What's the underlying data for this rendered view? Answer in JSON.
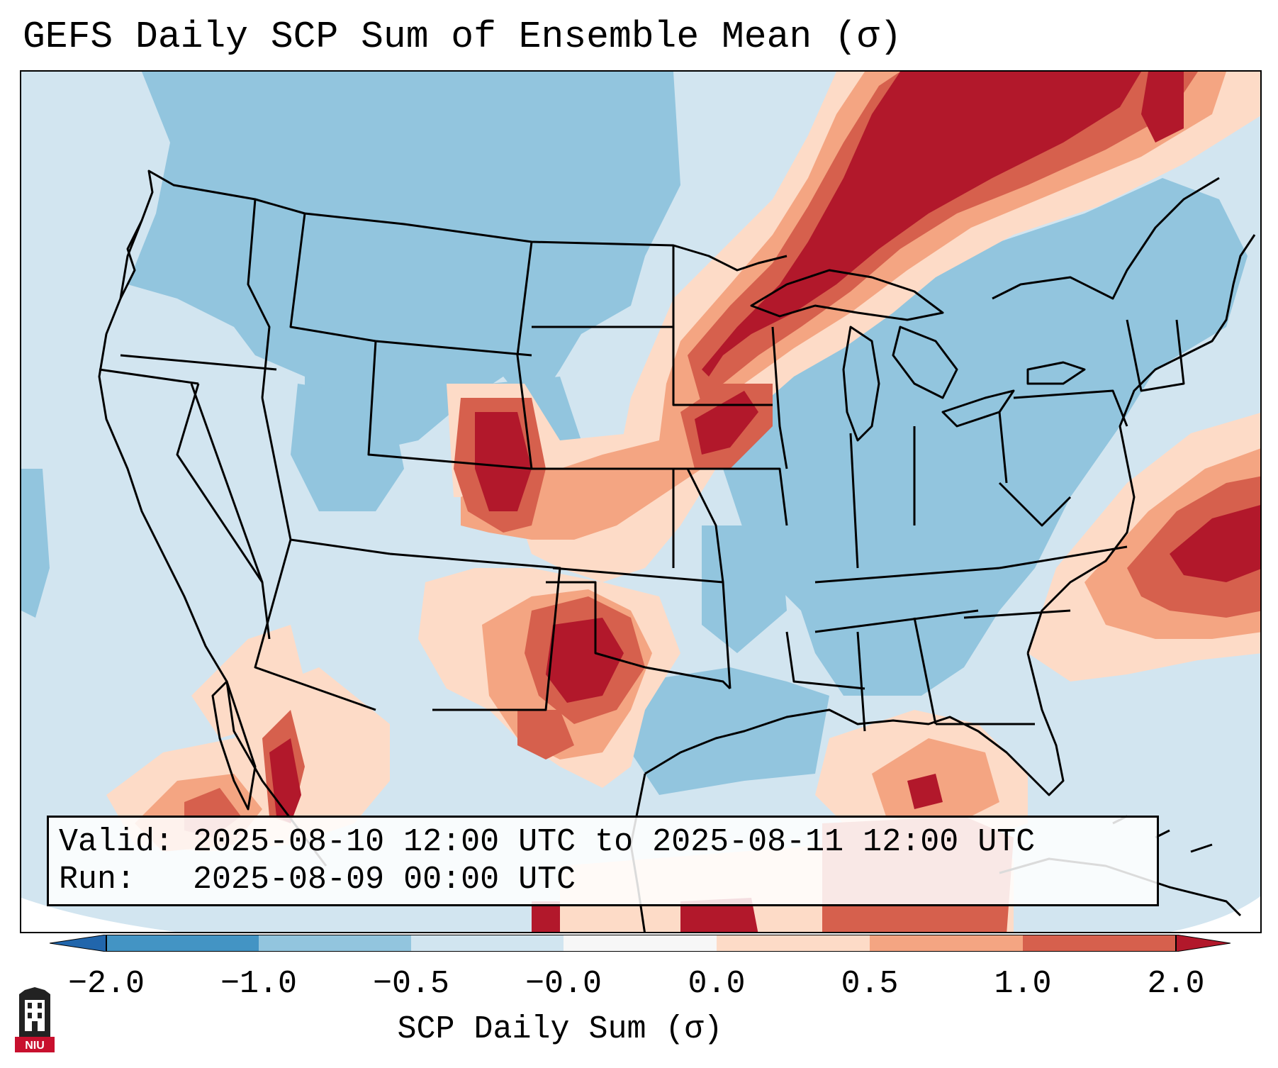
{
  "title": "GEFS Daily SCP Sum of Ensemble Mean (σ)",
  "info": {
    "valid": "Valid: 2025-08-10 12:00 UTC to 2025-08-11 12:00 UTC",
    "run": "Run:   2025-08-09 00:00 UTC"
  },
  "colorbar": {
    "label": "SCP Daily Sum (σ)",
    "ticks": [
      "−2.0",
      "−1.0",
      "−0.5",
      "−0.0",
      "0.0",
      "0.5",
      "1.0",
      "2.0"
    ],
    "colors": [
      "#4394c4",
      "#92c5de",
      "#d1e5f0",
      "#f7f7f7",
      "#fddbc7",
      "#f4a582",
      "#d6604d",
      "#b2182b"
    ],
    "extend_low_color": "#2166ac",
    "extend_high_color": "#b2182b"
  },
  "map": {
    "background_color": "#d1e5f0",
    "coast_color": "#000000",
    "regions": [
      {
        "name": "Northwest below-normal",
        "level": "−1.0 to −0.5",
        "color": "#92c5de"
      },
      {
        "name": "Northern Plains below-normal",
        "level": "−1.0 to −0.5",
        "color": "#92c5de"
      },
      {
        "name": "Upper Midwest / Great Lakes high SCP",
        "level": "≥ 2.0",
        "color": "#b2182b"
      },
      {
        "name": "Eastern Colorado high SCP",
        "level": "≥ 2.0",
        "color": "#b2182b"
      },
      {
        "name": "Kansas corridor",
        "level": "0.5 to 1.0",
        "color": "#f4a582"
      },
      {
        "name": "West Texas high SCP",
        "level": "≥ 2.0",
        "color": "#b2182b"
      },
      {
        "name": "Southeast below-normal",
        "level": "−1.0 to −0.5",
        "color": "#92c5de"
      },
      {
        "name": "Western Atlantic high SCP",
        "level": "≥ 2.0",
        "color": "#b2182b"
      },
      {
        "name": "Gulf of Mexico",
        "level": "0.5 to 1.0",
        "color": "#f4a582"
      },
      {
        "name": "Northwest Mexico",
        "level": "0.5 to 1.0",
        "color": "#f4a582"
      }
    ]
  },
  "logo": {
    "text": "NIU"
  }
}
